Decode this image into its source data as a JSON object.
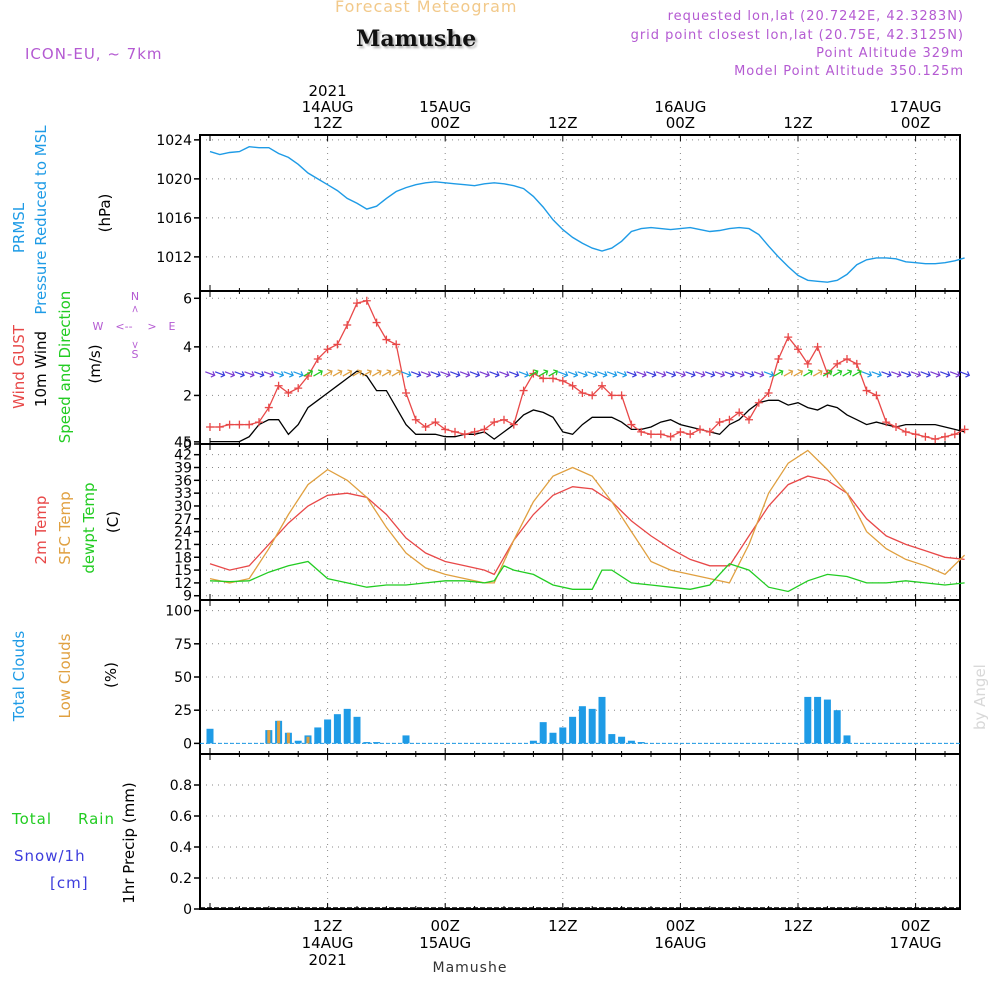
{
  "header": {
    "product": "Forecast Meteogram",
    "station": "Mamushe",
    "model": "ICON-EU, ~ 7km",
    "requested": "requested lon,lat (20.7242E, 42.3283N)",
    "grid": "grid point closest lon,lat (20.75E, 42.3125N)",
    "point_alt": "Point Altitude 329m",
    "model_alt": "Model Point Altitude 350.125m",
    "footer_station": "Mamushe",
    "credit": "by Angel"
  },
  "colors": {
    "pressure": "#1e9be6",
    "gust": "#e84848",
    "wind": "#000000",
    "sfc": "#e0a040",
    "dewpt": "#22cc22",
    "purple": "#b45ad2",
    "snow": "#3c3cdc",
    "grid": "#888888"
  },
  "time_axis": {
    "top_labels": [
      {
        "t": 12,
        "lines": [
          "2021",
          "14AUG",
          "12Z"
        ]
      },
      {
        "t": 24,
        "lines": [
          "15AUG",
          "00Z"
        ]
      },
      {
        "t": 36,
        "lines": [
          "12Z"
        ]
      },
      {
        "t": 48,
        "lines": [
          "16AUG",
          "00Z"
        ]
      },
      {
        "t": 60,
        "lines": [
          "12Z"
        ]
      },
      {
        "t": 72,
        "lines": [
          "17AUG",
          "00Z"
        ]
      }
    ],
    "bottom_labels": [
      {
        "t": 12,
        "lines": [
          "12Z",
          "14AUG",
          "2021"
        ]
      },
      {
        "t": 24,
        "lines": [
          "00Z",
          "15AUG"
        ]
      },
      {
        "t": 36,
        "lines": [
          "12Z"
        ]
      },
      {
        "t": 48,
        "lines": [
          "00Z",
          "16AUG"
        ]
      },
      {
        "t": 60,
        "lines": [
          "12Z"
        ]
      },
      {
        "t": 72,
        "lines": [
          "00Z",
          "17AUG"
        ]
      }
    ]
  },
  "chart_data": [
    {
      "type": "line",
      "panel": "pressure",
      "label_lines": [
        "PRMSL",
        "Pressure Reduced to MSL"
      ],
      "unit": "(hPa)",
      "ylim": [
        1008.5,
        1024.5
      ],
      "yticks": [
        1012,
        1016,
        1020,
        1024
      ],
      "series": [
        {
          "x": [
            0,
            1,
            2,
            3,
            4,
            5,
            6,
            7,
            8,
            9,
            10,
            11,
            12,
            13,
            14,
            15,
            16,
            17,
            18,
            19,
            20,
            21,
            22,
            23,
            24,
            25,
            26,
            27,
            28,
            29,
            30,
            31,
            32,
            33,
            34,
            35,
            36,
            37,
            38,
            39,
            40,
            41,
            42,
            43,
            44,
            45,
            46,
            47,
            48,
            49,
            50,
            51,
            52,
            53,
            54,
            55,
            56,
            57,
            58,
            59,
            60,
            61,
            62,
            63,
            64,
            65,
            66,
            67,
            68,
            69,
            70,
            71,
            72,
            73,
            74,
            75,
            76,
            77
          ],
          "values": [
            1022.8,
            1022.5,
            1022.7,
            1022.8,
            1023.3,
            1023.2,
            1023.2,
            1022.6,
            1022.2,
            1021.5,
            1020.6,
            1020.0,
            1019.4,
            1018.8,
            1018.0,
            1017.5,
            1016.9,
            1017.2,
            1018.0,
            1018.7,
            1019.1,
            1019.4,
            1019.6,
            1019.7,
            1019.6,
            1019.5,
            1019.4,
            1019.3,
            1019.5,
            1019.6,
            1019.5,
            1019.3,
            1019.0,
            1018.2,
            1017.1,
            1015.8,
            1014.8,
            1014.0,
            1013.4,
            1012.9,
            1012.6,
            1012.9,
            1013.6,
            1014.6,
            1014.9,
            1015.0,
            1014.9,
            1014.8,
            1014.9,
            1015.0,
            1014.8,
            1014.6,
            1014.7,
            1014.9,
            1015.0,
            1014.9,
            1014.3,
            1013.1,
            1012.0,
            1011.0,
            1010.1,
            1009.6,
            1009.5,
            1009.4,
            1009.6,
            1010.2,
            1011.2,
            1011.7,
            1011.9,
            1011.9,
            1011.8,
            1011.5,
            1011.4,
            1011.3,
            1011.3,
            1011.4,
            1011.6,
            1011.9
          ]
        }
      ]
    },
    {
      "type": "line",
      "panel": "wind",
      "label_lines": [
        "Wind GUST",
        "10m Wind",
        "Speed and Direction"
      ],
      "unit": "(m/s)",
      "compass": {
        "n": "N",
        "s": "S",
        "w": "W",
        "e": "E"
      },
      "ylim": [
        0,
        6.3
      ],
      "yticks": [
        0,
        2,
        4,
        6
      ],
      "gust": {
        "x": [
          0,
          1,
          2,
          3,
          4,
          5,
          6,
          7,
          8,
          9,
          10,
          11,
          12,
          13,
          14,
          15,
          16,
          17,
          18,
          19,
          20,
          21,
          22,
          23,
          24,
          25,
          26,
          27,
          28,
          29,
          30,
          31,
          32,
          33,
          34,
          35,
          36,
          37,
          38,
          39,
          40,
          41,
          42,
          43,
          44,
          45,
          46,
          47,
          48,
          49,
          50,
          51,
          52,
          53,
          54,
          55,
          56,
          57,
          58,
          59,
          60,
          61,
          62,
          63,
          64,
          65,
          66,
          67,
          68,
          69,
          70,
          71,
          72,
          73,
          74,
          75,
          76,
          77
        ],
        "values": [
          0.7,
          0.7,
          0.8,
          0.8,
          0.8,
          0.9,
          1.5,
          2.4,
          2.1,
          2.3,
          2.8,
          3.5,
          3.9,
          4.1,
          4.9,
          5.8,
          5.9,
          5.0,
          4.3,
          4.1,
          2.1,
          1.0,
          0.7,
          0.9,
          0.6,
          0.5,
          0.4,
          0.5,
          0.6,
          0.9,
          1.0,
          0.8,
          2.2,
          2.9,
          2.7,
          2.7,
          2.6,
          2.4,
          2.1,
          2.0,
          2.4,
          2.0,
          2.0,
          0.8,
          0.5,
          0.4,
          0.4,
          0.3,
          0.5,
          0.4,
          0.6,
          0.5,
          0.9,
          1.0,
          1.3,
          1.0,
          1.7,
          2.1,
          3.5,
          4.4,
          3.9,
          3.3,
          4.0,
          2.9,
          3.3,
          3.5,
          3.3,
          2.2,
          2.0,
          0.9,
          0.7,
          0.5,
          0.4,
          0.3,
          0.2,
          0.3,
          0.4,
          0.6
        ]
      },
      "wind": {
        "x": [
          0,
          1,
          2,
          3,
          4,
          5,
          6,
          7,
          8,
          9,
          10,
          11,
          12,
          13,
          14,
          15,
          16,
          17,
          18,
          19,
          20,
          21,
          22,
          23,
          24,
          25,
          26,
          27,
          28,
          29,
          30,
          31,
          32,
          33,
          34,
          35,
          36,
          37,
          38,
          39,
          40,
          41,
          42,
          43,
          44,
          45,
          46,
          47,
          48,
          49,
          50,
          51,
          52,
          53,
          54,
          55,
          56,
          57,
          58,
          59,
          60,
          61,
          62,
          63,
          64,
          65,
          66,
          67,
          68,
          69,
          70,
          71,
          72,
          73,
          74,
          75,
          76,
          77
        ],
        "values": [
          0.1,
          0.1,
          0.1,
          0.1,
          0.3,
          0.8,
          1.0,
          1.0,
          0.4,
          0.8,
          1.5,
          1.8,
          2.1,
          2.4,
          2.7,
          3.0,
          2.8,
          2.2,
          2.2,
          1.5,
          0.8,
          0.4,
          0.4,
          0.4,
          0.3,
          0.3,
          0.4,
          0.4,
          0.5,
          0.2,
          0.5,
          0.8,
          1.2,
          1.4,
          1.3,
          1.1,
          0.5,
          0.4,
          0.8,
          1.1,
          1.1,
          1.1,
          0.9,
          0.6,
          0.6,
          0.7,
          0.9,
          1.0,
          0.8,
          0.7,
          0.6,
          0.5,
          0.4,
          0.8,
          1.0,
          1.4,
          1.7,
          1.8,
          1.8,
          1.6,
          1.7,
          1.5,
          1.4,
          1.6,
          1.5,
          1.2,
          1.0,
          0.8,
          0.9,
          0.8,
          0.7,
          0.8,
          0.8,
          0.8,
          0.8,
          0.7,
          0.6,
          0.5
        ]
      }
    },
    {
      "type": "line",
      "panel": "temperature",
      "label_lines": [
        "2m Temp",
        "SFC Temp",
        "dewpt Temp"
      ],
      "unit": "(C)",
      "ylim": [
        8,
        44.5
      ],
      "yticks": [
        9,
        12,
        15,
        18,
        21,
        24,
        27,
        30,
        33,
        36,
        39,
        42,
        45
      ],
      "series": [
        {
          "key": "t2m",
          "x": [
            0,
            2,
            4,
            6,
            8,
            10,
            12,
            14,
            16,
            18,
            20,
            22,
            24,
            26,
            28,
            29,
            31,
            33,
            35,
            37,
            39,
            41,
            43,
            45,
            47,
            49,
            51,
            53,
            55,
            57,
            59,
            61,
            63,
            65,
            67,
            69,
            71,
            73,
            75,
            77
          ],
          "values": [
            16.5,
            15.0,
            16.0,
            21.0,
            26.0,
            30.0,
            32.5,
            33.0,
            32.0,
            28.0,
            22.5,
            19.0,
            17.0,
            16.0,
            15.0,
            14.0,
            22.0,
            28.0,
            32.5,
            34.5,
            34.0,
            31.0,
            26.5,
            23.0,
            20.0,
            17.5,
            16.0,
            16.0,
            23.0,
            30.0,
            35.0,
            37.0,
            36.0,
            33.0,
            27.0,
            23.0,
            21.0,
            19.5,
            18.0,
            17.5
          ]
        },
        {
          "key": "sfc",
          "x": [
            0,
            2,
            4,
            6,
            8,
            10,
            12,
            14,
            16,
            18,
            20,
            22,
            24,
            26,
            28,
            29,
            31,
            33,
            35,
            37,
            39,
            41,
            43,
            45,
            47,
            49,
            51,
            53,
            55,
            57,
            59,
            61,
            63,
            65,
            67,
            69,
            71,
            73,
            75,
            77
          ],
          "values": [
            13.0,
            12.0,
            13.0,
            20.0,
            28.0,
            35.0,
            38.5,
            36.0,
            32.0,
            25.0,
            19.0,
            15.5,
            14.0,
            13.0,
            12.0,
            12.0,
            22.0,
            31.0,
            37.0,
            39.0,
            37.0,
            31.0,
            24.0,
            17.0,
            15.0,
            14.0,
            13.0,
            12.0,
            21.0,
            33.0,
            40.0,
            43.0,
            38.5,
            33.0,
            24.0,
            20.0,
            17.5,
            16.0,
            14.0,
            18.5
          ]
        },
        {
          "key": "dewpt",
          "x": [
            0,
            2,
            4,
            6,
            8,
            10,
            12,
            14,
            16,
            18,
            20,
            22,
            24,
            26,
            28,
            29,
            30,
            31,
            33,
            35,
            37,
            39,
            40,
            41,
            43,
            45,
            47,
            49,
            51,
            53,
            55,
            57,
            59,
            61,
            63,
            65,
            67,
            69,
            71,
            73,
            75,
            77
          ],
          "values": [
            12.5,
            12.3,
            12.5,
            14.5,
            16.0,
            17.0,
            13.0,
            12.0,
            11.0,
            11.5,
            11.5,
            12.0,
            12.5,
            12.5,
            12.0,
            12.5,
            16.0,
            15.0,
            14.0,
            11.5,
            10.5,
            10.5,
            15.0,
            15.0,
            12.0,
            11.5,
            11.0,
            10.5,
            11.5,
            16.5,
            15.0,
            11.0,
            10.0,
            12.5,
            14.0,
            13.5,
            12.0,
            12.0,
            12.5,
            12.0,
            11.5,
            12.0
          ]
        }
      ]
    },
    {
      "type": "bar",
      "panel": "clouds",
      "label_lines": [
        "Total Clouds",
        "Low Clouds"
      ],
      "unit": "(%)",
      "ylim": [
        -8,
        108
      ],
      "yticks": [
        0,
        25,
        50,
        75,
        100
      ],
      "total": {
        "x": [
          0,
          6,
          7,
          8,
          9,
          10,
          11,
          12,
          13,
          14,
          15,
          16,
          17,
          20,
          33,
          34,
          35,
          36,
          37,
          38,
          39,
          40,
          41,
          42,
          43,
          44,
          61,
          62,
          63,
          64,
          65
        ],
        "values": [
          11,
          10,
          17,
          8,
          2,
          6,
          12,
          18,
          22,
          26,
          20,
          1,
          1,
          6,
          2,
          16,
          8,
          12,
          20,
          28,
          26,
          35,
          7,
          5,
          2,
          1,
          35,
          35,
          33,
          25,
          6
        ]
      },
      "low": {
        "x": [
          6,
          7,
          8,
          10
        ],
        "values": [
          10,
          17,
          8,
          5
        ]
      }
    },
    {
      "type": "bar",
      "panel": "precip",
      "label_lines": [
        "Total",
        "Rain",
        "Snow/1h",
        "[cm]"
      ],
      "unit": "1hr Precip (mm)",
      "ylim": [
        0,
        1.0
      ],
      "yticks": [
        0,
        0.2,
        0.4,
        0.6,
        0.8
      ],
      "values": []
    }
  ]
}
